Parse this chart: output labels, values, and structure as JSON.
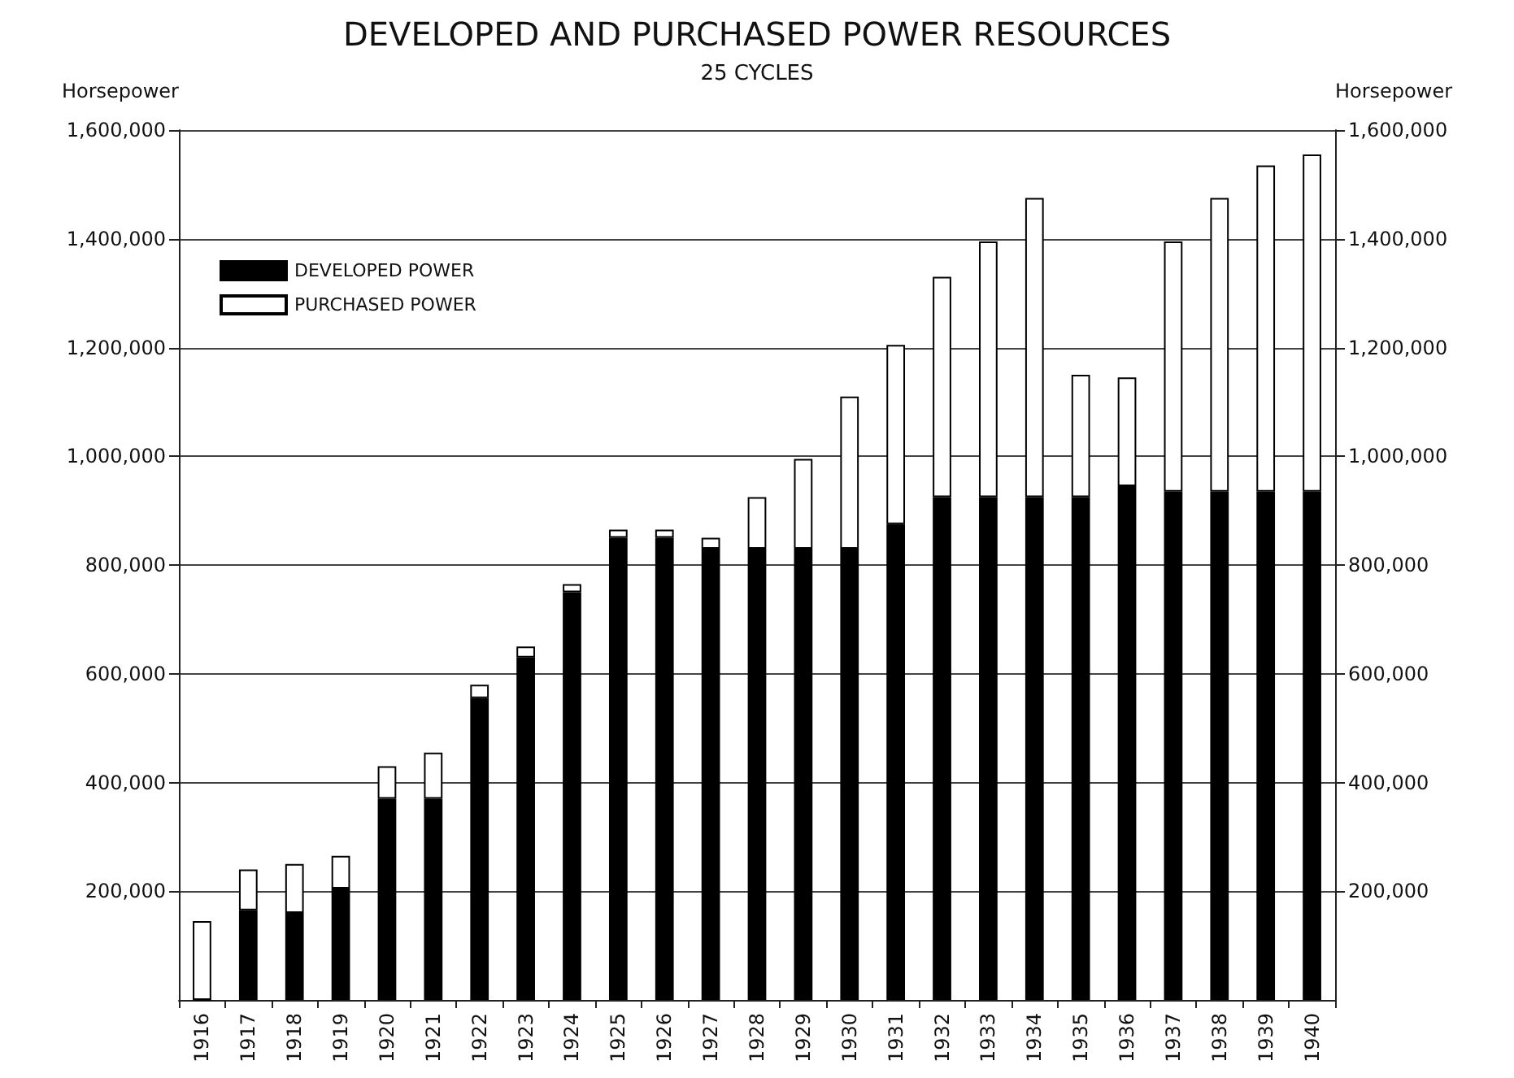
{
  "chart_data": {
    "type": "bar",
    "title": "DEVELOPED AND PURCHASED POWER RESOURCES",
    "subtitle": "25 CYCLES",
    "ylabel": "Horsepower",
    "y2label": "Horsepower",
    "categories": [
      "1916",
      "1917",
      "1918",
      "1919",
      "1920",
      "1921",
      "1922",
      "1923",
      "1924",
      "1925",
      "1926",
      "1927",
      "1928",
      "1929",
      "1930",
      "1931",
      "1932",
      "1933",
      "1934",
      "1935",
      "1936",
      "1937",
      "1938",
      "1939",
      "1940"
    ],
    "stacked": true,
    "series": [
      {
        "name": "DEVELOPED POWER",
        "color": "#000000",
        "values": [
          0,
          165000,
          160000,
          205000,
          370000,
          370000,
          555000,
          630000,
          750000,
          850000,
          850000,
          830000,
          830000,
          830000,
          830000,
          875000,
          925000,
          925000,
          925000,
          925000,
          945000,
          935000,
          935000,
          935000,
          935000
        ]
      },
      {
        "name": "PURCHASED POWER",
        "color": "#ffffff",
        "values": [
          145000,
          75000,
          90000,
          60000,
          60000,
          85000,
          25000,
          20000,
          15000,
          15000,
          15000,
          20000,
          95000,
          165000,
          280000,
          330000,
          405000,
          470000,
          550000,
          225000,
          200000,
          460000,
          540000,
          600000,
          620000
        ]
      }
    ],
    "ylim": [
      0,
      1600000
    ],
    "yticks": [
      {
        "value": 200000,
        "label": "200,000"
      },
      {
        "value": 400000,
        "label": "400,000"
      },
      {
        "value": 600000,
        "label": "600,000"
      },
      {
        "value": 800000,
        "label": "800,000"
      },
      {
        "value": 1000000,
        "label": "1,000,000"
      },
      {
        "value": 1200000,
        "label": "1,200,000"
      },
      {
        "value": 1400000,
        "label": "1,400,000"
      },
      {
        "value": 1600000,
        "label": "1,600,000"
      }
    ],
    "y2lim": [
      0,
      1600000
    ],
    "y2ticks": [
      {
        "value": 200000,
        "label": "200,000"
      },
      {
        "value": 400000,
        "label": "400,000"
      },
      {
        "value": 600000,
        "label": "600,000"
      },
      {
        "value": 800000,
        "label": "800,000"
      },
      {
        "value": 1000000,
        "label": "1,000,000"
      },
      {
        "value": 1200000,
        "label": "1,200,000"
      },
      {
        "value": 1400000,
        "label": "1,400,000"
      },
      {
        "value": 1600000,
        "label": "1,600,000"
      }
    ],
    "grid": "y",
    "legend": "top left"
  }
}
